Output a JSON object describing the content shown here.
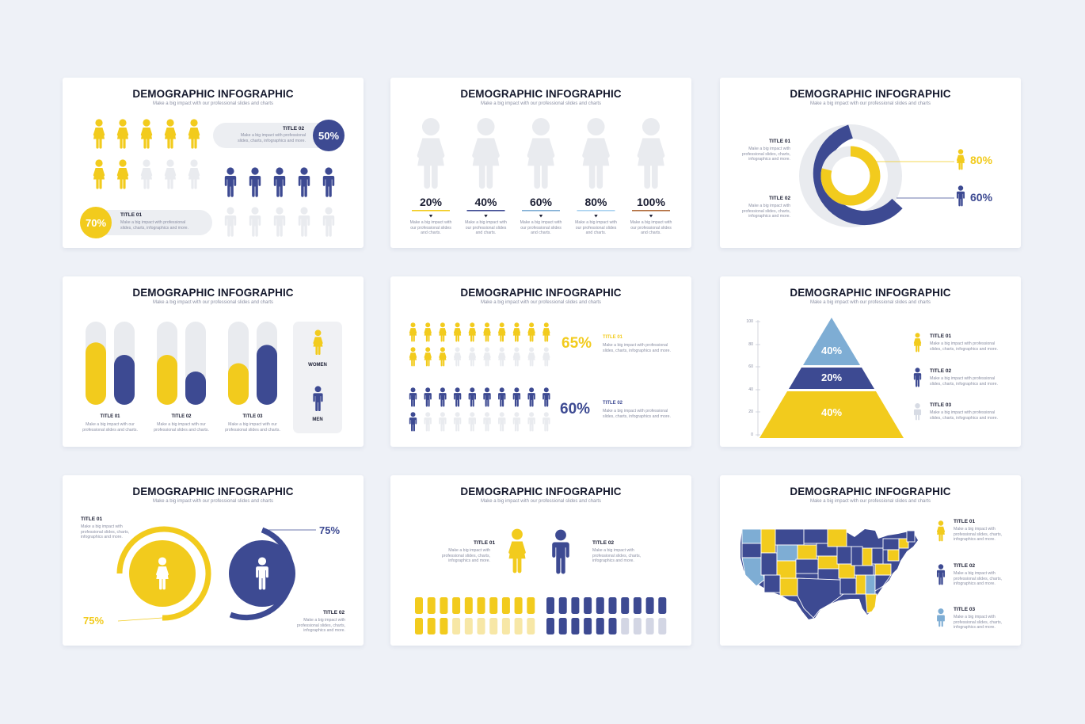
{
  "common": {
    "title": "DEMOGRAPHIC INFOGRAPHIC",
    "subtitle": "Make a big impact with our professional slides and charts"
  },
  "colors": {
    "yellow": "#f2cb1d",
    "navy": "#3d4a92",
    "grey": "#e9ebef",
    "blue": "#7eadd4",
    "lightblue": "#a9d2f0",
    "brown": "#b06a3a",
    "bg": "#eef1f7"
  },
  "slide1": {
    "t2": "TITLE 02",
    "d2": "Make a big impact with professional slides, charts, infographics and more.",
    "p2": "50%",
    "t1": "TITLE 01",
    "d1": "Make a big impact with professional slides, charts, infographics and more.",
    "p1": "70%"
  },
  "slide2": {
    "items": [
      {
        "pct": "20%",
        "desc": "Make a big impact with our professional slides and charts.",
        "color": "#f2cb1d"
      },
      {
        "pct": "40%",
        "desc": "Make a big impact with our professional slides and charts.",
        "color": "#3d4a92"
      },
      {
        "pct": "60%",
        "desc": "Make a big impact with our professional slides and charts.",
        "color": "#7eadd4"
      },
      {
        "pct": "80%",
        "desc": "Make a big impact with our professional slides and charts.",
        "color": "#a9d2f0"
      },
      {
        "pct": "100%",
        "desc": "Make a big impact with our professional slides and charts.",
        "color": "#b06a3a"
      }
    ]
  },
  "slide3": {
    "t1": "TITLE 01",
    "d1": "Make a big impact with professional slides, charts, infographics and more.",
    "t2": "TITLE 02",
    "d2": "Make a big impact with professional slides, charts, infographics and more.",
    "p1": "80%",
    "p2": "60%"
  },
  "slide4": {
    "women": "WOMEN",
    "men": "MEN",
    "bars": [
      {
        "title": "TITLE 01",
        "desc": "Make a big impact with our professional slides and charts.",
        "women": 0.75,
        "men": 0.6
      },
      {
        "title": "TITLE 02",
        "desc": "Make a big impact with our professional slides and charts.",
        "women": 0.6,
        "men": 0.4
      },
      {
        "title": "TITLE 03",
        "desc": "Make a big impact with our professional slides and charts.",
        "women": 0.5,
        "men": 0.72
      }
    ]
  },
  "slide5": {
    "p1": "65%",
    "t1": "TITLE 01",
    "d1": "Make a big impact with professional slides, charts, infographics and more.",
    "p2": "60%",
    "t2": "TITLE 02",
    "d2": "Make a big impact with professional slides, charts, infographics and more."
  },
  "slide6": {
    "axis": [
      "100",
      "80",
      "60",
      "40",
      "20",
      "0"
    ],
    "levels": [
      "40%",
      "20%",
      "40%"
    ],
    "items": [
      {
        "title": "TITLE 01",
        "desc": "Make a big impact with professional slides, charts, infographics and more."
      },
      {
        "title": "TITLE 02",
        "desc": "Make a big impact with professional slides, charts, infographics and more."
      },
      {
        "title": "TITLE 03",
        "desc": "Make a big impact with professional slides, charts, infographics and more."
      }
    ]
  },
  "slide7": {
    "t1": "TITLE 01",
    "d1": "Make a big impact with professional slides, charts, infographics and more.",
    "t2": "TITLE 02",
    "d2": "Make a big impact with professional slides, charts, infographics and more.",
    "p1": "75%",
    "p2": "75%"
  },
  "slide8": {
    "t1": "TITLE 01",
    "d1": "Make a big impact with professional slides, charts, infographics and more.",
    "t2": "TITLE 02",
    "d2": "Make a big impact with professional slides, charts, infographics and more."
  },
  "slide9": {
    "items": [
      {
        "title": "TITLE 01",
        "desc": "Make a big impact with professional slides, charts, infographics and more."
      },
      {
        "title": "TITLE 02",
        "desc": "Make a big impact with professional slides, charts, infographics and more."
      },
      {
        "title": "TITLE 03",
        "desc": "Make a big impact with professional slides, charts, infographics and more."
      }
    ]
  }
}
